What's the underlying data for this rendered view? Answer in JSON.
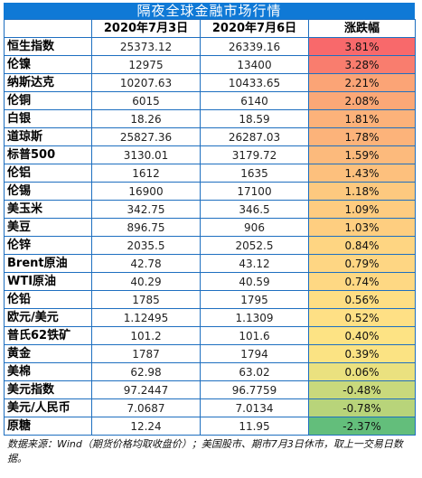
{
  "title": "隔夜全球金融市场行情",
  "headers": [
    "",
    "2020年7月3日",
    "2020年7月6日",
    "涨跌幅"
  ],
  "chart_data": {
    "type": "table",
    "columns": [
      "",
      "2020年7月3日",
      "2020年7月6日",
      "涨跌幅"
    ],
    "rows": [
      {
        "name": "恒生指数",
        "jul3": "25373.12",
        "jul6": "26339.16",
        "change": "3.81%",
        "color": "#f8696b"
      },
      {
        "name": "伦镍",
        "jul3": "12975",
        "jul6": "13400",
        "change": "3.28%",
        "color": "#f97d6e"
      },
      {
        "name": "纳斯达克",
        "jul3": "10207.63",
        "jul6": "10433.65",
        "change": "2.21%",
        "color": "#fba476"
      },
      {
        "name": "伦铜",
        "jul3": "6015",
        "jul6": "6140",
        "change": "2.08%",
        "color": "#fba877"
      },
      {
        "name": "白银",
        "jul3": "18.26",
        "jul6": "18.59",
        "change": "1.81%",
        "color": "#fcb27a"
      },
      {
        "name": "道琼斯",
        "jul3": "25827.36",
        "jul6": "26287.03",
        "change": "1.78%",
        "color": "#fcb37a"
      },
      {
        "name": "标普500",
        "jul3": "3130.01",
        "jul6": "3179.72",
        "change": "1.59%",
        "color": "#fcba7c"
      },
      {
        "name": "伦铝",
        "jul3": "1612",
        "jul6": "1635",
        "change": "1.43%",
        "color": "#fdc07d"
      },
      {
        "name": "伦锡",
        "jul3": "16900",
        "jul6": "17100",
        "change": "1.18%",
        "color": "#fdc97f"
      },
      {
        "name": "美玉米",
        "jul3": "342.75",
        "jul6": "346.5",
        "change": "1.09%",
        "color": "#fecc80"
      },
      {
        "name": "美豆",
        "jul3": "896.75",
        "jul6": "906",
        "change": "1.03%",
        "color": "#fece80"
      },
      {
        "name": "伦锌",
        "jul3": "2035.5",
        "jul6": "2052.5",
        "change": "0.84%",
        "color": "#fed582"
      },
      {
        "name": "Brent原油",
        "jul3": "42.78",
        "jul6": "43.12",
        "change": "0.79%",
        "color": "#fed683"
      },
      {
        "name": "WTI原油",
        "jul3": "40.29",
        "jul6": "40.59",
        "change": "0.74%",
        "color": "#fed883"
      },
      {
        "name": "伦铅",
        "jul3": "1785",
        "jul6": "1795",
        "change": "0.56%",
        "color": "#fede84"
      },
      {
        "name": "欧元/美元",
        "jul3": "1.12495",
        "jul6": "1.1309",
        "change": "0.52%",
        "color": "#fee085"
      },
      {
        "name": "普氏62铁矿",
        "jul3": "101.2",
        "jul6": "101.6",
        "change": "0.40%",
        "color": "#fde384"
      },
      {
        "name": "黄金",
        "jul3": "1787",
        "jul6": "1794",
        "change": "0.39%",
        "color": "#fbe383"
      },
      {
        "name": "美棉",
        "jul3": "62.98",
        "jul6": "63.02",
        "change": "0.06%",
        "color": "#eae17f"
      },
      {
        "name": "美元指数",
        "jul3": "97.2447",
        "jul6": "96.7759",
        "change": "-0.48%",
        "color": "#c9d97c"
      },
      {
        "name": "美元/人民币",
        "jul3": "7.0687",
        "jul6": "7.0134",
        "change": "-0.78%",
        "color": "#b8d47a"
      },
      {
        "name": "原糖",
        "jul3": "12.24",
        "jul6": "11.95",
        "change": "-2.37%",
        "color": "#63be7b"
      }
    ]
  },
  "note": "数据来源：Wind（期货价格均取收盘价）；美国股市、期市7月3日休市，取上一交易日数据。"
}
